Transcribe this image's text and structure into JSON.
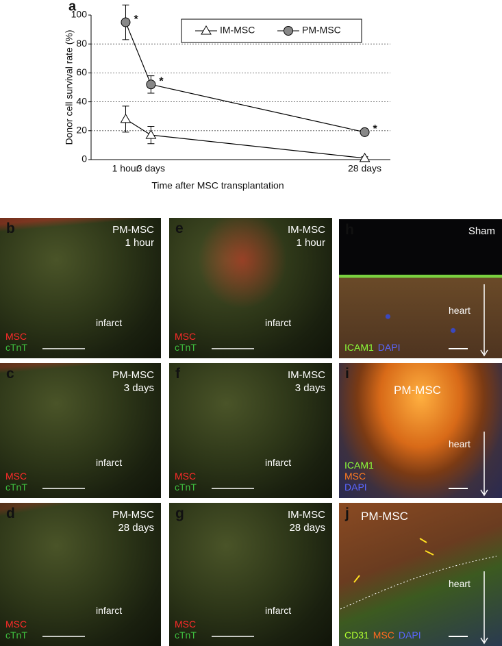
{
  "chart_data": {
    "type": "line",
    "panel_label": "a",
    "x": [
      0.042,
      3,
      28
    ],
    "xticks": [
      {
        "value": 0.042,
        "label": "1 hour"
      },
      {
        "value": 3,
        "label": "3 days"
      },
      {
        "value": 28,
        "label": "28 days"
      }
    ],
    "xlim": [
      -4,
      31
    ],
    "ylim": [
      0,
      100
    ],
    "yticks": [
      0,
      20,
      40,
      60,
      80,
      100
    ],
    "xlabel": "Time after MSC transplantation",
    "ylabel": "Donor cell survival rate (%)",
    "grid": true,
    "legend": "top-right",
    "series": [
      {
        "name": "IM-MSC",
        "color": "#ffffff",
        "marker": "triangle",
        "values": [
          28,
          17,
          1
        ],
        "errors": [
          9,
          6,
          1
        ]
      },
      {
        "name": "PM-MSC",
        "color": "#888888",
        "marker": "circle",
        "values": [
          95,
          52,
          19
        ],
        "errors": [
          12,
          6,
          2
        ],
        "annotations": [
          "*",
          "*",
          "*"
        ]
      }
    ]
  },
  "panels": [
    {
      "label": "b",
      "title": [
        "PM-MSC",
        "1 hour"
      ],
      "stains": [
        [
          {
            "text": "MSC",
            "color": "#ff2a2a"
          }
        ],
        [
          {
            "text": "cTnT",
            "color": "#3fbf3f"
          }
        ]
      ],
      "note": "infarct"
    },
    {
      "label": "c",
      "title": [
        "PM-MSC",
        "3 days"
      ],
      "stains": [
        [
          {
            "text": "MSC",
            "color": "#ff2a2a"
          }
        ],
        [
          {
            "text": "cTnT",
            "color": "#3fbf3f"
          }
        ]
      ],
      "note": "infarct"
    },
    {
      "label": "d",
      "title": [
        "PM-MSC",
        "28 days"
      ],
      "stains": [
        [
          {
            "text": "MSC",
            "color": "#ff2a2a"
          }
        ],
        [
          {
            "text": "cTnT",
            "color": "#3fbf3f"
          }
        ]
      ],
      "note": "infarct"
    },
    {
      "label": "e",
      "title": [
        "IM-MSC",
        "1 hour"
      ],
      "stains": [
        [
          {
            "text": "MSC",
            "color": "#ff2a2a"
          }
        ],
        [
          {
            "text": "cTnT",
            "color": "#3fbf3f"
          }
        ]
      ],
      "note": "infarct"
    },
    {
      "label": "f",
      "title": [
        "IM-MSC",
        "3 days"
      ],
      "stains": [
        [
          {
            "text": "MSC",
            "color": "#ff2a2a"
          }
        ],
        [
          {
            "text": "cTnT",
            "color": "#3fbf3f"
          }
        ]
      ],
      "note": "infarct"
    },
    {
      "label": "g",
      "title": [
        "IM-MSC",
        "28 days"
      ],
      "stains": [
        [
          {
            "text": "MSC",
            "color": "#ff2a2a"
          }
        ],
        [
          {
            "text": "cTnT",
            "color": "#3fbf3f"
          }
        ]
      ],
      "note": "infarct"
    },
    {
      "label": "h",
      "title": [
        "Sham"
      ],
      "stains": [
        [
          {
            "text": "ICAM1",
            "color": "#8cff3a"
          },
          {
            "text": "DAPI",
            "color": "#5a66ff"
          }
        ]
      ],
      "note": "heart"
    },
    {
      "label": "i",
      "title": [
        "PM-MSC"
      ],
      "stains": [
        [
          {
            "text": "ICAM1",
            "color": "#8cff3a"
          }
        ],
        [
          {
            "text": "MSC",
            "color": "#ff7a20"
          }
        ],
        [
          {
            "text": "DAPI",
            "color": "#5a66ff"
          }
        ]
      ],
      "note": "heart"
    },
    {
      "label": "j",
      "title": [
        "PM-MSC"
      ],
      "stains": [
        [
          {
            "text": "CD31",
            "color": "#b0ff30"
          },
          {
            "text": "MSC",
            "color": "#ff6a20"
          },
          {
            "text": "DAPI",
            "color": "#5a66ff"
          }
        ]
      ],
      "note": "heart"
    }
  ]
}
